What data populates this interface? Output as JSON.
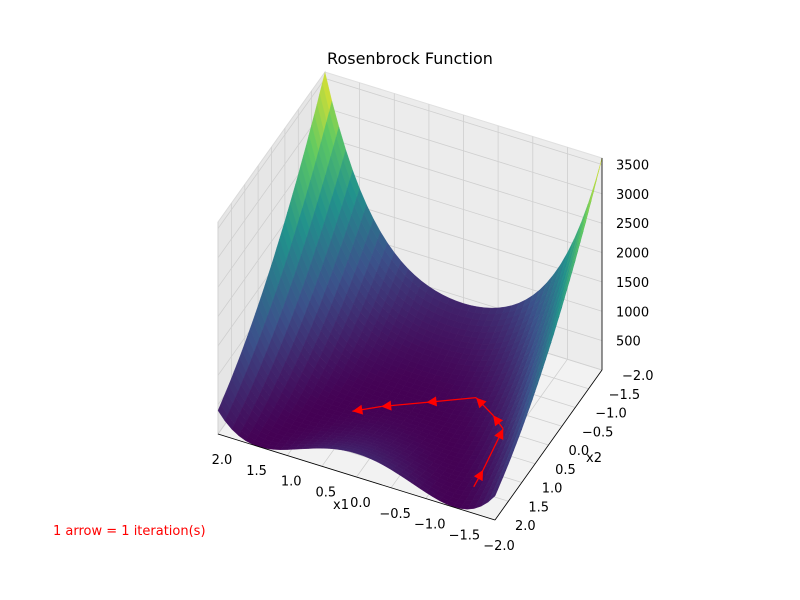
{
  "chart_data": {
    "type": "surface3d",
    "title": "Rosenbrock Function",
    "xlabel": "x1",
    "ylabel": "x2",
    "zlabel": "",
    "x_ticks": [
      "2.0",
      "1.5",
      "1.0",
      "0.5",
      "0.0",
      "−0.5",
      "−1.0",
      "−1.5",
      "−2.0"
    ],
    "y_ticks": [
      "−2.0",
      "−1.5",
      "−1.0",
      "−0.5",
      "0.0",
      "0.5",
      "1.0",
      "1.5",
      "2.0"
    ],
    "z_ticks": [
      "500",
      "1000",
      "1500",
      "2000",
      "2500",
      "3000",
      "3500"
    ],
    "xlim": [
      -2,
      2
    ],
    "ylim": [
      -2,
      2
    ],
    "zlim": [
      0,
      3610
    ],
    "function": "(1 - x1)^2 + 100 * (x2 - x1^2)^2",
    "colormap": [
      "#440154",
      "#3b528b",
      "#21918c",
      "#5ec962",
      "#fde725"
    ],
    "grid": true,
    "iteration_path": [
      [
        -1.5,
        1.5
      ],
      [
        -1.5,
        1.15
      ],
      [
        -1.5,
        0.4
      ],
      [
        -1.2,
        0.0
      ],
      [
        -0.8,
        -0.4
      ],
      [
        -0.2,
        -0.1
      ],
      [
        0.3,
        0.3
      ],
      [
        0.6,
        0.6
      ]
    ],
    "arrow_color": "#ff0000",
    "annotation": "1 arrow = 1 iteration(s)"
  }
}
